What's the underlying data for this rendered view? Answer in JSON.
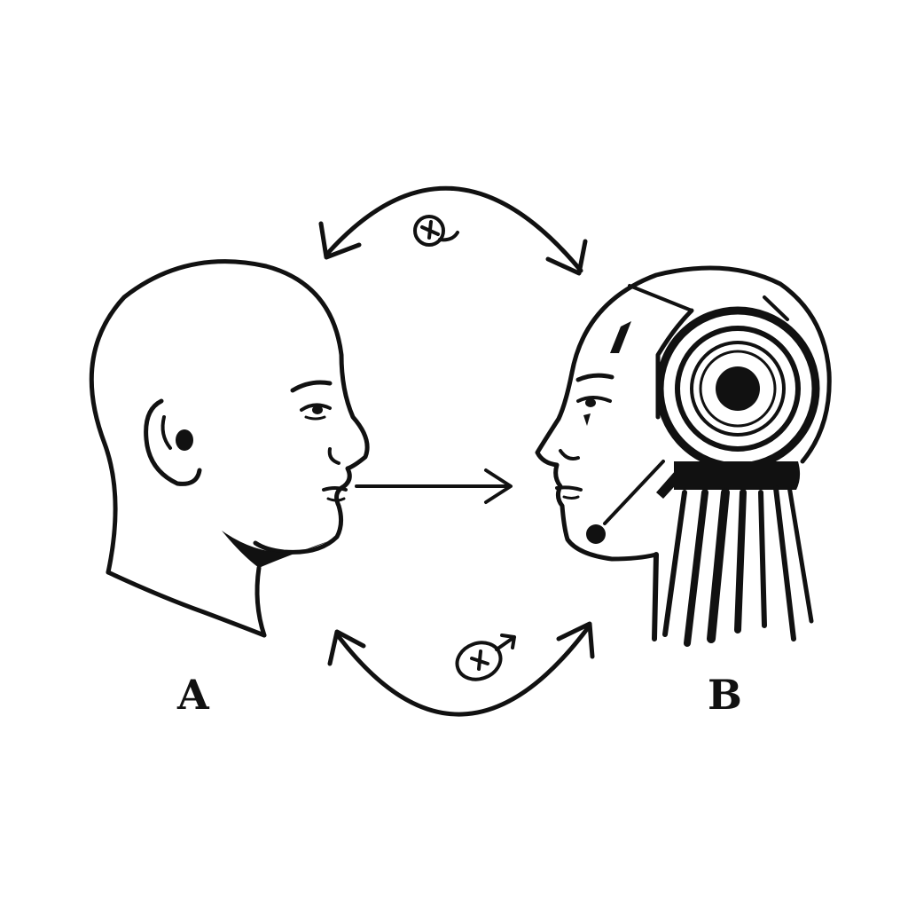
{
  "diagram": {
    "labels": {
      "human": "A",
      "robot": "B"
    },
    "ink_color": "#111111",
    "background_color": "#ffffff",
    "icons": {
      "human_head": "human-head-profile",
      "robot_head": "robot-head-profile",
      "speech_arrow": "arrow-right",
      "top_cycle": "curved-double-arrow",
      "bottom_cycle": "curved-double-arrow",
      "top_symbol": "swirl-symbol",
      "bottom_symbol": "male-symbol"
    }
  }
}
